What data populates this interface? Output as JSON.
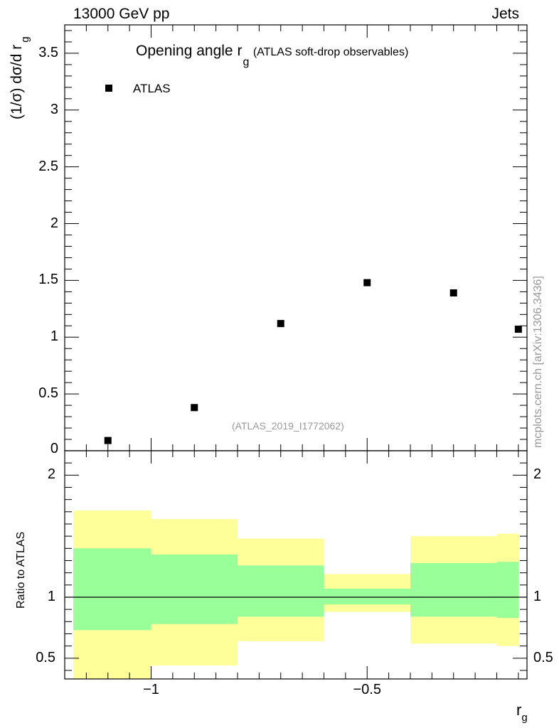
{
  "header": {
    "left": "13000 GeV pp",
    "right": "Jets"
  },
  "side_label": "mcplots.cern.ch [arXiv:1306.3436]",
  "chart_data": [
    {
      "type": "scatter",
      "title_main": "Opening angle r",
      "title_sub": "g",
      "title_suffix": "(ATLAS soft-drop observables)",
      "analysis_label": "(ATLAS_2019_I1772062)",
      "ylabel_main": "(1/σ) dσ/d r",
      "ylabel_sub": "g",
      "xlim": [
        -1.2,
        -0.13
      ],
      "ylim": [
        0,
        3.75
      ],
      "yticks": [
        0,
        0.5,
        1,
        1.5,
        2,
        2.5,
        3,
        3.5
      ],
      "ytick_labels": [
        "0",
        "0.5",
        "1",
        "1.5",
        "2",
        "2.5",
        "3",
        "3.5"
      ],
      "legend": {
        "label": "ATLAS",
        "position": "top-left"
      },
      "series": [
        {
          "name": "ATLAS",
          "x": [
            -1.1,
            -0.9,
            -0.7,
            -0.5,
            -0.3,
            -0.15
          ],
          "y": [
            0.09,
            0.38,
            1.12,
            1.48,
            1.39,
            1.07
          ]
        }
      ]
    },
    {
      "type": "area",
      "ylabel": "Ratio to ATLAS",
      "xlabel_main": "r",
      "xlabel_sub": "g",
      "xlim": [
        -1.2,
        -0.13
      ],
      "ylim": [
        0.33,
        2.2
      ],
      "yticks": [
        0.5,
        1,
        2
      ],
      "ytick_labels": [
        "0.5",
        "1",
        "2"
      ],
      "xticks": [
        -1,
        -0.5
      ],
      "xtick_labels": [
        "−1",
        "−0.5"
      ],
      "reference_line": 1,
      "bands": {
        "x_edges": [
          -1.2,
          -1.0,
          -0.8,
          -0.6,
          -0.4,
          -0.2,
          -0.13
        ],
        "inner": [
          [
            0.73,
            1.4
          ],
          [
            0.78,
            1.35
          ],
          [
            0.84,
            1.26
          ],
          [
            0.94,
            1.07
          ],
          [
            0.84,
            1.28
          ],
          [
            0.83,
            1.29
          ]
        ],
        "outer": [
          [
            0.0,
            1.71
          ],
          [
            0.44,
            1.64
          ],
          [
            0.64,
            1.48
          ],
          [
            0.88,
            1.19
          ],
          [
            0.62,
            1.5
          ],
          [
            0.6,
            1.52
          ]
        ],
        "inner_color": "#99ff99",
        "outer_color": "#ffff99"
      }
    }
  ]
}
